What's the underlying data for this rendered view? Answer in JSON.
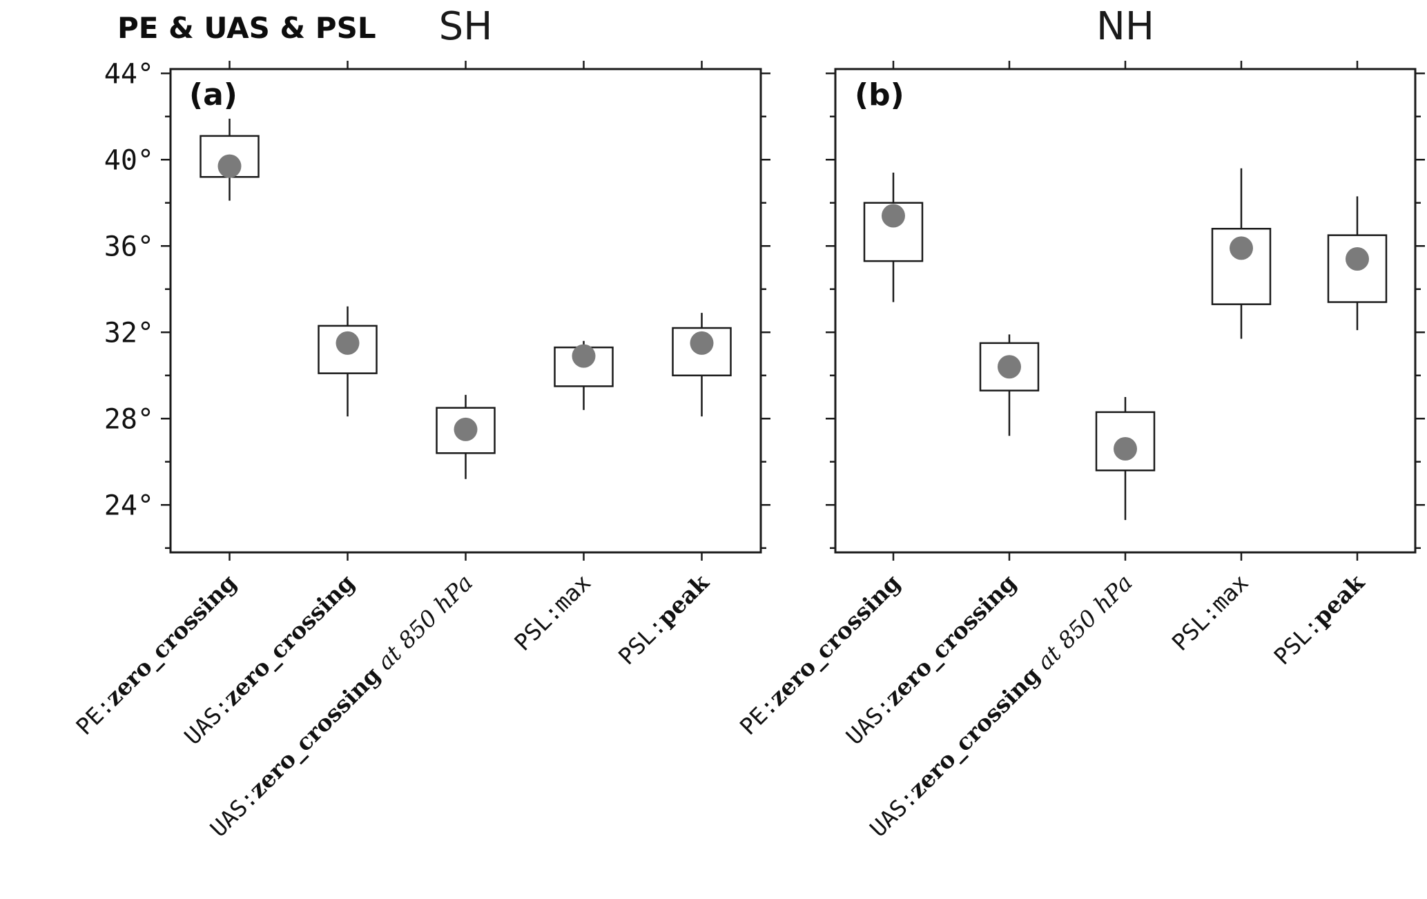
{
  "chart_data": {
    "type": "boxplot",
    "title": "PE & UAS & PSL",
    "ylim": [
      21.8,
      44.2
    ],
    "yticks_major": [
      24,
      28,
      32,
      36,
      40,
      44
    ],
    "ytick_labels": [
      "24°",
      "28°",
      "32°",
      "36°",
      "40°",
      "44°"
    ],
    "yticks_minor": [
      22,
      26,
      30,
      34,
      38,
      42
    ],
    "grid": false,
    "legend": "none",
    "categories": [
      {
        "name": "PE:zero_crossing",
        "segments": [
          {
            "text": "PE:",
            "style": "mono"
          },
          {
            "text": "zero_crossing",
            "style": "bold-serif"
          }
        ]
      },
      {
        "name": "UAS:zero_crossing",
        "segments": [
          {
            "text": "UAS:",
            "style": "mono"
          },
          {
            "text": "zero_crossing",
            "style": "bold-serif"
          }
        ]
      },
      {
        "name": "UAS:zero_crossing at 850 hPa",
        "segments": [
          {
            "text": "UAS:",
            "style": "mono"
          },
          {
            "text": "zero_crossing",
            "style": "bold-serif"
          },
          {
            "text": " at 850 hPa",
            "style": "italic-serif"
          }
        ]
      },
      {
        "name": "PSL:max",
        "segments": [
          {
            "text": "PSL:max",
            "style": "mono"
          }
        ]
      },
      {
        "name": "PSL:peak",
        "segments": [
          {
            "text": "PSL:",
            "style": "mono"
          },
          {
            "text": "peak",
            "style": "bold-serif"
          }
        ]
      }
    ],
    "panels": [
      {
        "label": "(a)",
        "title": "SH",
        "boxes": [
          {
            "category": "PE:zero_crossing",
            "whisker_low": 38.1,
            "q1": 39.2,
            "mean": 39.7,
            "q3": 41.1,
            "whisker_high": 41.9
          },
          {
            "category": "UAS:zero_crossing",
            "whisker_low": 28.1,
            "q1": 30.1,
            "mean": 31.5,
            "q3": 32.3,
            "whisker_high": 33.2
          },
          {
            "category": "UAS:zero_crossing at 850 hPa",
            "whisker_low": 25.2,
            "q1": 26.4,
            "mean": 27.5,
            "q3": 28.5,
            "whisker_high": 29.1
          },
          {
            "category": "PSL:max",
            "whisker_low": 28.4,
            "q1": 29.5,
            "mean": 30.9,
            "q3": 31.3,
            "whisker_high": 31.6
          },
          {
            "category": "PSL:peak",
            "whisker_low": 28.1,
            "q1": 30.0,
            "mean": 31.5,
            "q3": 32.2,
            "whisker_high": 32.9
          }
        ]
      },
      {
        "label": "(b)",
        "title": "NH",
        "boxes": [
          {
            "category": "PE:zero_crossing",
            "whisker_low": 33.4,
            "q1": 35.3,
            "mean": 37.4,
            "q3": 38.0,
            "whisker_high": 39.4
          },
          {
            "category": "UAS:zero_crossing",
            "whisker_low": 27.2,
            "q1": 29.3,
            "mean": 30.4,
            "q3": 31.5,
            "whisker_high": 31.9
          },
          {
            "category": "UAS:zero_crossing at 850 hPa",
            "whisker_low": 23.3,
            "q1": 25.6,
            "mean": 26.6,
            "q3": 28.3,
            "whisker_high": 29.0
          },
          {
            "category": "PSL:max",
            "whisker_low": 31.7,
            "q1": 33.3,
            "mean": 35.9,
            "q3": 36.8,
            "whisker_high": 39.6
          },
          {
            "category": "PSL:peak",
            "whisker_low": 32.1,
            "q1": 33.4,
            "mean": 35.4,
            "q3": 36.5,
            "whisker_high": 38.3
          }
        ]
      }
    ],
    "colors": {
      "box_fill": "#ffffff",
      "box_stroke": "#1a1a1a",
      "dot": "#7b7b7b",
      "axis": "#1a1a1a"
    }
  }
}
